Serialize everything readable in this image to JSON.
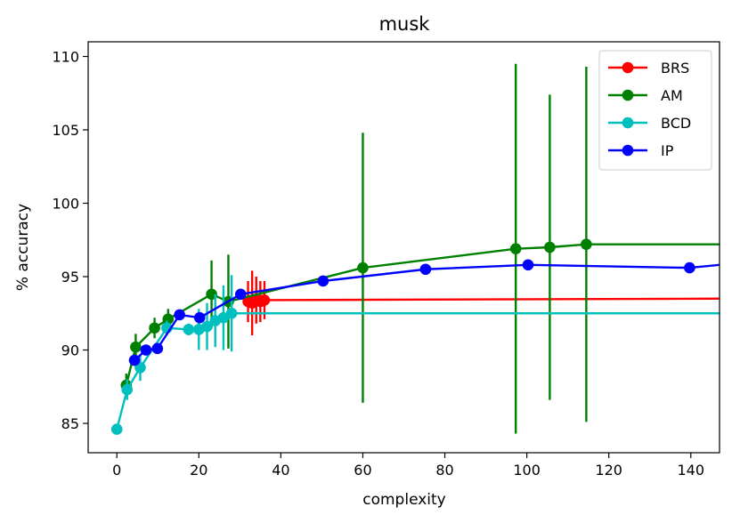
{
  "chart_data": {
    "type": "line",
    "title": "musk",
    "xlabel": "complexity",
    "ylabel": "% accuracy",
    "xlim": [
      -7,
      147
    ],
    "ylim": [
      83,
      111
    ],
    "xticks": [
      "0",
      "20",
      "40",
      "60",
      "80",
      "100",
      "120",
      "140"
    ],
    "yticks": [
      "85",
      "90",
      "95",
      "100",
      "105",
      "110"
    ],
    "legend_position": "top-right",
    "grid": false,
    "series": [
      {
        "name": "BRS",
        "color": "#ff0000",
        "x": [
          32,
          33,
          34,
          35,
          36
        ],
        "y": [
          93.3,
          93.2,
          93.4,
          93.3,
          93.4
        ],
        "err": [
          1.4,
          2.2,
          1.6,
          1.4,
          1.3
        ],
        "line_end": {
          "x": 147,
          "y": 93.5
        }
      },
      {
        "name": "AM",
        "color": "#008000",
        "x": [
          2.3,
          4.6,
          9.2,
          12.5,
          23.1,
          27.2,
          60,
          97.3,
          105.6,
          114.5
        ],
        "y": [
          87.6,
          90.2,
          91.5,
          92.1,
          93.8,
          93.3,
          95.6,
          96.9,
          97.0,
          97.2
        ],
        "err": [
          0.8,
          0.9,
          0.7,
          0.7,
          2.3,
          3.2,
          9.2,
          12.6,
          10.4,
          12.1
        ],
        "line_end": {
          "x": 147,
          "y": 97.2
        }
      },
      {
        "name": "BCD",
        "color": "#00bfbf",
        "x": [
          0,
          2.5,
          5.7,
          12.2,
          17.5,
          20,
          22,
          24,
          26,
          28
        ],
        "y": [
          84.6,
          87.3,
          88.8,
          91.5,
          91.4,
          91.4,
          91.6,
          92.0,
          92.2,
          92.5
        ],
        "err": [
          0.3,
          0.7,
          0.9,
          0.5,
          0.4,
          1.4,
          1.6,
          1.8,
          2.2,
          2.6
        ],
        "line_end": {
          "x": 147,
          "y": 92.5
        }
      },
      {
        "name": "IP",
        "color": "#0000ff",
        "x": [
          4.3,
          7.1,
          9.9,
          15.3,
          20.2,
          30.2,
          50.3,
          75.3,
          100.3,
          139.7
        ],
        "y": [
          89.3,
          90.0,
          90.1,
          92.4,
          92.2,
          93.8,
          94.7,
          95.5,
          95.8,
          95.6
        ],
        "err": [],
        "line_end": {
          "x": 147,
          "y": 95.8
        }
      }
    ]
  }
}
